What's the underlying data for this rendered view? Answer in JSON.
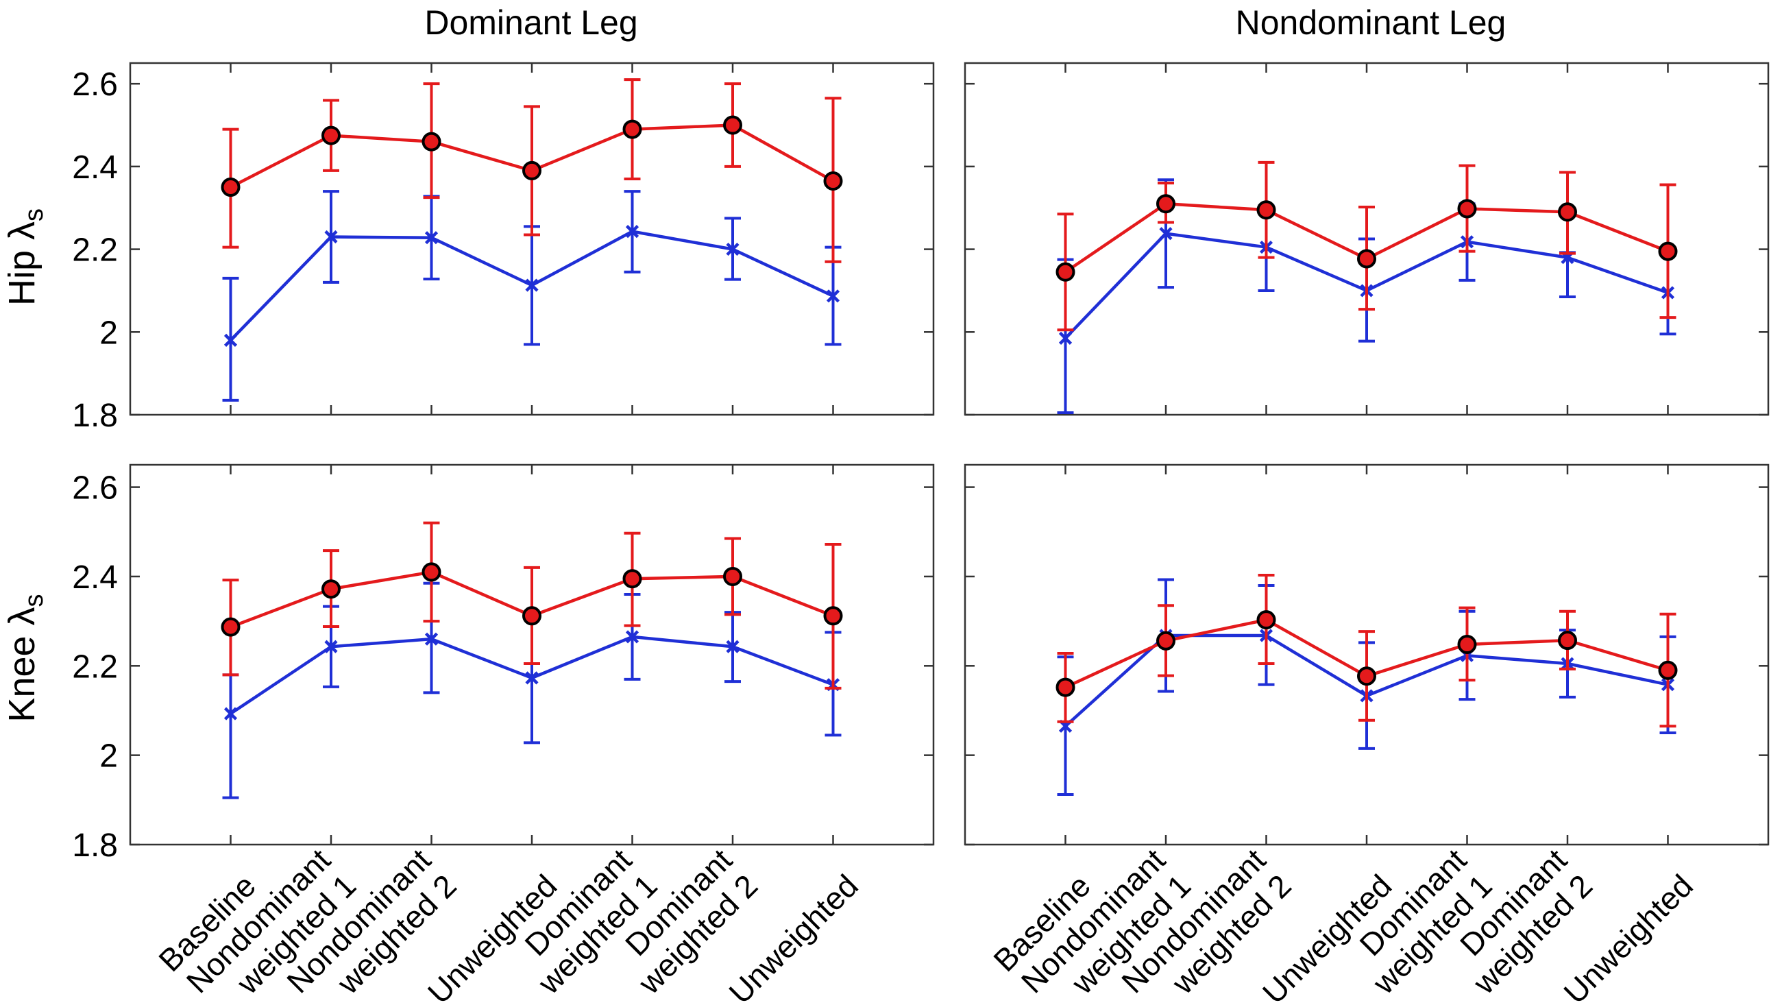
{
  "colors": {
    "red": "#e41a1c",
    "blue": "#1f2fd6",
    "marker_edge": "#000000"
  },
  "column_titles": [
    "Dominant Leg",
    "Nondominant Leg"
  ],
  "row_labels": [
    {
      "base": "Hip ",
      "greek": "λ",
      "sub": "s"
    },
    {
      "base": "Knee ",
      "greek": "λ",
      "sub": "s"
    }
  ],
  "y_ticks": [
    "2.6",
    "2.4",
    "2.2",
    "2",
    "1.8"
  ],
  "categories": [
    [
      "Baseline"
    ],
    [
      "Nondominant",
      "weighted 1"
    ],
    [
      "Nondominant",
      "weighted 2"
    ],
    [
      "Unweighted"
    ],
    [
      "Dominant",
      "weighted 1"
    ],
    [
      "Dominant",
      "weighted 2"
    ],
    [
      "Unweighted"
    ]
  ],
  "chart_data": [
    {
      "type": "line",
      "title": "Dominant Leg",
      "ylabel": "Hip λs",
      "ylim": [
        1.8,
        2.65
      ],
      "series": [
        {
          "name": "red",
          "values": [
            2.35,
            2.475,
            2.46,
            2.39,
            2.49,
            2.5,
            2.365
          ],
          "err_low": [
            2.205,
            2.39,
            2.325,
            2.235,
            2.37,
            2.4,
            2.17
          ],
          "err_high": [
            2.49,
            2.56,
            2.6,
            2.545,
            2.61,
            2.6,
            2.565
          ]
        },
        {
          "name": "blue",
          "values": [
            1.98,
            2.23,
            2.228,
            2.113,
            2.243,
            2.2,
            2.087
          ],
          "err_low": [
            1.835,
            2.12,
            2.128,
            1.97,
            2.145,
            2.127,
            1.97
          ],
          "err_high": [
            2.13,
            2.34,
            2.328,
            2.255,
            2.34,
            2.275,
            2.205
          ]
        }
      ]
    },
    {
      "type": "line",
      "title": "Nondominant Leg",
      "ylabel": "Hip λs",
      "ylim": [
        1.8,
        2.65
      ],
      "series": [
        {
          "name": "red",
          "values": [
            2.145,
            2.31,
            2.295,
            2.177,
            2.298,
            2.29,
            2.195
          ],
          "err_low": [
            2.005,
            2.265,
            2.18,
            2.055,
            2.195,
            2.19,
            2.035
          ],
          "err_high": [
            2.285,
            2.36,
            2.41,
            2.302,
            2.402,
            2.386,
            2.356
          ]
        },
        {
          "name": "blue",
          "values": [
            1.985,
            2.238,
            2.205,
            2.1,
            2.218,
            2.18,
            2.095
          ],
          "err_low": [
            1.805,
            2.108,
            2.1,
            1.978,
            2.125,
            2.085,
            1.995
          ],
          "err_high": [
            2.175,
            2.368,
            2.305,
            2.225,
            2.31,
            2.192,
            2.195
          ]
        }
      ]
    },
    {
      "type": "line",
      "title": "Dominant Leg",
      "ylabel": "Knee λs",
      "ylim": [
        1.8,
        2.65
      ],
      "series": [
        {
          "name": "red",
          "values": [
            2.287,
            2.372,
            2.41,
            2.312,
            2.395,
            2.4,
            2.312
          ],
          "err_low": [
            2.18,
            2.288,
            2.3,
            2.205,
            2.29,
            2.315,
            2.15
          ],
          "err_high": [
            2.392,
            2.458,
            2.52,
            2.42,
            2.497,
            2.485,
            2.472
          ]
        },
        {
          "name": "blue",
          "values": [
            2.093,
            2.243,
            2.26,
            2.173,
            2.265,
            2.243,
            2.158
          ],
          "err_low": [
            1.905,
            2.153,
            2.14,
            2.028,
            2.17,
            2.165,
            2.045
          ],
          "err_high": [
            2.18,
            2.333,
            2.385,
            2.315,
            2.36,
            2.32,
            2.275
          ]
        }
      ]
    },
    {
      "type": "line",
      "title": "Nondominant Leg",
      "ylabel": "Knee λs",
      "ylim": [
        1.8,
        2.65
      ],
      "series": [
        {
          "name": "red",
          "values": [
            2.152,
            2.256,
            2.303,
            2.177,
            2.248,
            2.257,
            2.19
          ],
          "err_low": [
            2.075,
            2.178,
            2.205,
            2.078,
            2.168,
            2.193,
            2.065
          ],
          "err_high": [
            2.228,
            2.335,
            2.403,
            2.277,
            2.33,
            2.322,
            2.316
          ]
        },
        {
          "name": "blue",
          "values": [
            2.065,
            2.268,
            2.268,
            2.133,
            2.223,
            2.205,
            2.158
          ],
          "err_low": [
            1.912,
            2.143,
            2.158,
            2.015,
            2.125,
            2.13,
            2.05
          ],
          "err_high": [
            2.22,
            2.393,
            2.38,
            2.252,
            2.322,
            2.28,
            2.265
          ]
        }
      ]
    }
  ]
}
